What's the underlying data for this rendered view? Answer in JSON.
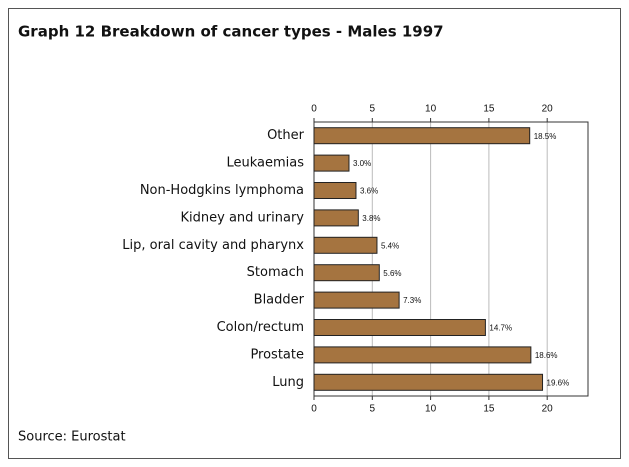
{
  "chart_data": {
    "type": "bar",
    "orientation": "horizontal",
    "title": "Graph 12  Breakdown of cancer types - Males 1997",
    "categories": [
      "Other",
      "Leukaemias",
      "Non-Hodgkins lymphoma",
      "Kidney and urinary",
      "Lip, oral cavity and pharynx",
      "Stomach",
      "Bladder",
      "Colon/rectum",
      "Prostate",
      "Lung"
    ],
    "values": [
      18.5,
      3.0,
      3.6,
      3.8,
      5.4,
      5.6,
      7.3,
      14.7,
      18.6,
      19.6
    ],
    "value_labels": [
      "18.5%",
      "3.0%",
      "3.6%",
      "3.8%",
      "5.4%",
      "5.6%",
      "7.3%",
      "14.7%",
      "18.6%",
      "19.6%"
    ],
    "color": "#a57440",
    "xlim": [
      0,
      23.5
    ],
    "xticks": [
      0,
      5,
      10,
      15,
      20
    ],
    "grid": true,
    "source": "Source: Eurostat"
  }
}
